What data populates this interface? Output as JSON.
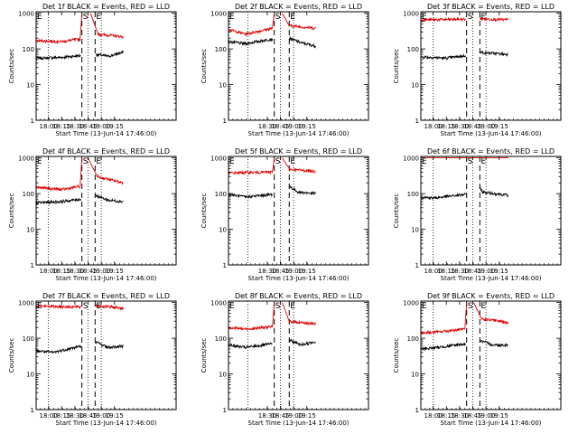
{
  "colors": {
    "events": "#000000",
    "lld": "#dd0000",
    "axis": "#000000",
    "background": "#ffffff"
  },
  "common": {
    "ylabel": "Counts/sec",
    "xlabel": "Start Time (13-Jun-14 17:46:00)",
    "ytick_labels": [
      "1",
      "10",
      "100",
      "1000"
    ],
    "yscale": "log",
    "ylim": [
      1,
      1100
    ],
    "xrange_minutes": [
      0,
      159
    ],
    "marker_letters": [
      "S",
      "E"
    ]
  },
  "panels": [
    {
      "title": "Det 1f BLACK = Events, RED = LLD",
      "xticks": [
        "18:00",
        "18:15",
        "18:30",
        "18:45",
        "19:00",
        "19:15"
      ]
    },
    {
      "title": "Det 2f BLACK = Events, RED = LLD",
      "xticks": [
        "18:30",
        "18:45",
        "19:00",
        "19:15"
      ]
    },
    {
      "title": "Det 3f BLACK = Events, RED = LLD",
      "xticks": [
        "18:00",
        "18:15",
        "18:30",
        "18:45",
        "19:00",
        "19:15"
      ]
    },
    {
      "title": "Det 4f BLACK = Events, RED = LLD",
      "xticks": [
        "18:00",
        "18:15",
        "18:30",
        "18:45",
        "19:00",
        "19:15"
      ]
    },
    {
      "title": "Det 5f BLACK = Events, RED = LLD",
      "xticks": [
        "18:30",
        "18:45",
        "19:00",
        "19:15"
      ]
    },
    {
      "title": "Det 6f BLACK = Events, RED = LLD",
      "xticks": [
        "18:00",
        "18:15",
        "18:30",
        "18:45",
        "19:00",
        "19:15"
      ]
    },
    {
      "title": "Det 7f BLACK = Events, RED = LLD",
      "xticks": [
        "18:00",
        "18:15",
        "18:30",
        "18:45",
        "19:00",
        "19:15"
      ]
    },
    {
      "title": "Det 8f BLACK = Events, RED = LLD",
      "xticks": [
        "18:30",
        "18:45",
        "19:00",
        "19:15"
      ]
    },
    {
      "title": "Det 9f BLACK = Events, RED = LLD",
      "xticks": [
        "18:00",
        "18:15",
        "18:30",
        "18:45",
        "19:00",
        "19:15"
      ]
    }
  ],
  "chart_data": [
    {
      "type": "line",
      "title": "Det 1f BLACK = Events, RED = LLD",
      "xlabel": "Start Time (13-Jun-14 17:46:00)",
      "ylabel": "Counts/sec",
      "yscale": "log",
      "ylim": [
        1,
        1100
      ],
      "x_tick_labels": [
        "18:00",
        "18:15",
        "18:30",
        "18:45",
        "19:00",
        "19:15"
      ],
      "xrange_minutes": [
        0,
        159
      ],
      "markers": {
        "dotted": [
          "18:00",
          "18:45",
          "19:00"
        ],
        "dashed": [
          "18:38",
          "18:53"
        ],
        "S": "18:38",
        "E": "18:53"
      },
      "series": [
        {
          "name": "BLACK = Events",
          "segments": [
            {
              "x": [
                "17:46",
                "18:15",
                "18:37"
              ],
              "y": [
                55,
                58,
                65
              ]
            },
            {
              "x": [
                "18:54",
                "19:08",
                "19:25"
              ],
              "y": [
                70,
                62,
                80
              ]
            }
          ]
        },
        {
          "name": "RED = LLD",
          "segments": [
            {
              "x": [
                "17:46",
                "18:15",
                "18:36",
                "18:38"
              ],
              "y": [
                170,
                160,
                190,
                1000
              ]
            },
            {
              "x": [
                "18:48",
                "18:56",
                "19:25"
              ],
              "y": [
                1000,
                260,
                220
              ]
            }
          ]
        }
      ]
    },
    {
      "type": "line",
      "title": "Det 2f BLACK = Events, RED = LLD",
      "xlabel": "Start Time (13-Jun-14 17:46:00)",
      "ylabel": "Counts/sec",
      "yscale": "log",
      "ylim": [
        1,
        1100
      ],
      "x_tick_labels": [
        "18:30",
        "18:45",
        "19:00",
        "19:15"
      ],
      "xrange_minutes": [
        0,
        159
      ],
      "markers": {
        "dotted": [
          "18:08",
          "18:45",
          "19:00"
        ],
        "dashed": [
          "18:38",
          "18:55"
        ],
        "S": "18:38",
        "E": "18:55"
      },
      "series": [
        {
          "name": "BLACK = Events",
          "segments": [
            {
              "x": [
                "17:46",
                "18:05",
                "18:36"
              ],
              "y": [
                160,
                140,
                190
              ]
            },
            {
              "x": [
                "18:55",
                "19:08",
                "19:25"
              ],
              "y": [
                200,
                150,
                120
              ]
            }
          ]
        },
        {
          "name": "RED = LLD",
          "segments": [
            {
              "x": [
                "17:46",
                "18:05",
                "18:36",
                "18:38"
              ],
              "y": [
                350,
                260,
                380,
                1000
              ]
            },
            {
              "x": [
                "18:47",
                "18:55",
                "19:25"
              ],
              "y": [
                1000,
                450,
                380
              ]
            }
          ]
        }
      ]
    },
    {
      "type": "line",
      "title": "Det 3f BLACK = Events, RED = LLD",
      "xlabel": "Start Time (13-Jun-14 17:46:00)",
      "ylabel": "Counts/sec",
      "yscale": "log",
      "ylim": [
        1,
        1100
      ],
      "x_tick_labels": [
        "18:00",
        "18:15",
        "18:30",
        "18:45",
        "19:00",
        "19:15"
      ],
      "xrange_minutes": [
        0,
        159
      ],
      "markers": {
        "dotted": [
          "18:00",
          "18:45",
          "19:00"
        ],
        "dashed": [
          "18:38",
          "18:53"
        ],
        "S": "18:38",
        "E": "18:53"
      },
      "series": [
        {
          "name": "BLACK = Events",
          "segments": [
            {
              "x": [
                "17:46",
                "18:15",
                "18:37"
              ],
              "y": [
                60,
                55,
                65
              ]
            },
            {
              "x": [
                "18:53",
                "19:25"
              ],
              "y": [
                80,
                70
              ]
            }
          ]
        },
        {
          "name": "RED = LLD",
          "segments": [
            {
              "x": [
                "17:46",
                "18:37"
              ],
              "y": [
                650,
                680
              ]
            },
            {
              "x": [
                "18:53",
                "19:25"
              ],
              "y": [
                700,
                650
              ]
            }
          ]
        }
      ]
    },
    {
      "type": "line",
      "title": "Det 4f BLACK = Events, RED = LLD",
      "xlabel": "Start Time (13-Jun-14 17:46:00)",
      "ylabel": "Counts/sec",
      "yscale": "log",
      "ylim": [
        1,
        1100
      ],
      "x_tick_labels": [
        "18:00",
        "18:15",
        "18:30",
        "18:45",
        "19:00",
        "19:15"
      ],
      "xrange_minutes": [
        0,
        159
      ],
      "markers": {
        "dotted": [
          "18:00",
          "18:45",
          "19:00"
        ],
        "dashed": [
          "18:38",
          "18:53"
        ],
        "S": "18:38",
        "E": "18:53"
      },
      "series": [
        {
          "name": "BLACK = Events",
          "segments": [
            {
              "x": [
                "17:46",
                "18:15",
                "18:37"
              ],
              "y": [
                55,
                60,
                70
              ]
            },
            {
              "x": [
                "18:53",
                "19:08",
                "19:25"
              ],
              "y": [
                90,
                65,
                60
              ]
            }
          ]
        },
        {
          "name": "RED = LLD",
          "segments": [
            {
              "x": [
                "17:46",
                "18:15",
                "18:36",
                "18:38"
              ],
              "y": [
                150,
                130,
                160,
                1000
              ]
            },
            {
              "x": [
                "18:45",
                "18:55",
                "19:25"
              ],
              "y": [
                1000,
                300,
                200
              ]
            }
          ]
        }
      ]
    },
    {
      "type": "line",
      "title": "Det 5f BLACK = Events, RED = LLD",
      "xlabel": "Start Time (13-Jun-14 17:46:00)",
      "ylabel": "Counts/sec",
      "yscale": "log",
      "ylim": [
        1,
        1100
      ],
      "x_tick_labels": [
        "18:30",
        "18:45",
        "19:00",
        "19:15"
      ],
      "xrange_minutes": [
        0,
        159
      ],
      "markers": {
        "dotted": [
          "18:08",
          "18:45",
          "19:00"
        ],
        "dashed": [
          "18:38",
          "18:55"
        ],
        "S": "18:38",
        "E": "18:55"
      },
      "series": [
        {
          "name": "BLACK = Events",
          "segments": [
            {
              "x": [
                "17:46",
                "18:05",
                "18:36"
              ],
              "y": [
                95,
                80,
                95
              ]
            },
            {
              "x": [
                "18:55",
                "19:05",
                "19:25"
              ],
              "y": [
                160,
                110,
                100
              ]
            }
          ]
        },
        {
          "name": "RED = LLD",
          "segments": [
            {
              "x": [
                "17:46",
                "18:36",
                "18:38"
              ],
              "y": [
                380,
                400,
                1000
              ]
            },
            {
              "x": [
                "18:47",
                "18:55",
                "19:25"
              ],
              "y": [
                1000,
                480,
                420
              ]
            }
          ]
        }
      ]
    },
    {
      "type": "line",
      "title": "Det 6f BLACK = Events, RED = LLD",
      "xlabel": "Start Time (13-Jun-14 17:46:00)",
      "ylabel": "Counts/sec",
      "yscale": "log",
      "ylim": [
        1,
        1100
      ],
      "x_tick_labels": [
        "18:00",
        "18:15",
        "18:30",
        "18:45",
        "19:00",
        "19:15"
      ],
      "xrange_minutes": [
        0,
        159
      ],
      "markers": {
        "dotted": [
          "18:00",
          "18:45",
          "19:00"
        ],
        "dashed": [
          "18:38",
          "18:53"
        ],
        "S": "18:38",
        "E": "18:53"
      },
      "series": [
        {
          "name": "BLACK = Events",
          "segments": [
            {
              "x": [
                "17:46",
                "18:00",
                "18:37"
              ],
              "y": [
                80,
                75,
                95
              ]
            },
            {
              "x": [
                "18:53",
                "18:56",
                "19:25"
              ],
              "y": [
                150,
                110,
                90
              ]
            }
          ]
        },
        {
          "name": "RED = LLD",
          "segments": [
            {
              "x": [
                "17:46",
                "19:25"
              ],
              "y": [
                1000,
                1000
              ]
            }
          ]
        }
      ]
    },
    {
      "type": "line",
      "title": "Det 7f BLACK = Events, RED = LLD",
      "xlabel": "Start Time (13-Jun-14 17:46:00)",
      "ylabel": "Counts/sec",
      "yscale": "log",
      "ylim": [
        1,
        1100
      ],
      "x_tick_labels": [
        "18:00",
        "18:15",
        "18:30",
        "18:45",
        "19:00",
        "19:15"
      ],
      "xrange_minutes": [
        0,
        159
      ],
      "markers": {
        "dotted": [
          "18:00",
          "18:45",
          "19:00"
        ],
        "dashed": [
          "18:38",
          "18:53"
        ],
        "S": "18:38",
        "E": "18:53"
      },
      "series": [
        {
          "name": "BLACK = Events",
          "segments": [
            {
              "x": [
                "17:46",
                "18:05",
                "18:37"
              ],
              "y": [
                45,
                40,
                60
              ]
            },
            {
              "x": [
                "18:53",
                "19:08",
                "19:25"
              ],
              "y": [
                80,
                55,
                60
              ]
            }
          ]
        },
        {
          "name": "RED = LLD",
          "segments": [
            {
              "x": [
                "17:46",
                "18:37"
              ],
              "y": [
                800,
                750
              ]
            },
            {
              "x": [
                "18:53",
                "19:25"
              ],
              "y": [
                820,
                700
              ]
            }
          ]
        }
      ]
    },
    {
      "type": "line",
      "title": "Det 8f BLACK = Events, RED = LLD",
      "xlabel": "Start Time (13-Jun-14 17:46:00)",
      "ylabel": "Counts/sec",
      "yscale": "log",
      "ylim": [
        1,
        1100
      ],
      "x_tick_labels": [
        "18:30",
        "18:45",
        "19:00",
        "19:15"
      ],
      "xrange_minutes": [
        0,
        159
      ],
      "markers": {
        "dotted": [
          "18:08",
          "18:45",
          "19:00"
        ],
        "dashed": [
          "18:38",
          "18:55"
        ],
        "S": "18:38",
        "E": "18:55"
      },
      "series": [
        {
          "name": "BLACK = Events",
          "segments": [
            {
              "x": [
                "17:46",
                "18:05",
                "18:36"
              ],
              "y": [
                65,
                55,
                70
              ]
            },
            {
              "x": [
                "18:55",
                "19:08",
                "19:25"
              ],
              "y": [
                90,
                65,
                80
              ]
            }
          ]
        },
        {
          "name": "RED = LLD",
          "segments": [
            {
              "x": [
                "17:46",
                "18:05",
                "18:36",
                "18:38"
              ],
              "y": [
                200,
                180,
                210,
                1000
              ]
            },
            {
              "x": [
                "18:47",
                "18:55",
                "19:25"
              ],
              "y": [
                1000,
                300,
                250
              ]
            }
          ]
        }
      ]
    },
    {
      "type": "line",
      "title": "Det 9f BLACK = Events, RED = LLD",
      "xlabel": "Start Time (13-Jun-14 17:46:00)",
      "ylabel": "Counts/sec",
      "yscale": "log",
      "ylim": [
        1,
        1100
      ],
      "x_tick_labels": [
        "18:00",
        "18:15",
        "18:30",
        "18:45",
        "19:00",
        "19:15"
      ],
      "xrange_minutes": [
        0,
        159
      ],
      "markers": {
        "dotted": [
          "18:00",
          "18:45",
          "19:00"
        ],
        "dashed": [
          "18:38",
          "18:53"
        ],
        "S": "18:38",
        "E": "18:53"
      },
      "series": [
        {
          "name": "BLACK = Events",
          "segments": [
            {
              "x": [
                "17:46",
                "18:05",
                "18:37"
              ],
              "y": [
                50,
                55,
                70
              ]
            },
            {
              "x": [
                "18:53",
                "19:08",
                "19:25"
              ],
              "y": [
                85,
                65,
                65
              ]
            }
          ]
        },
        {
          "name": "RED = LLD",
          "segments": [
            {
              "x": [
                "17:46",
                "18:05",
                "18:36",
                "18:38"
              ],
              "y": [
                140,
                150,
                180,
                1000
              ]
            },
            {
              "x": [
                "18:46",
                "18:55",
                "19:25"
              ],
              "y": [
                1000,
                350,
                280
              ]
            }
          ]
        }
      ]
    }
  ]
}
